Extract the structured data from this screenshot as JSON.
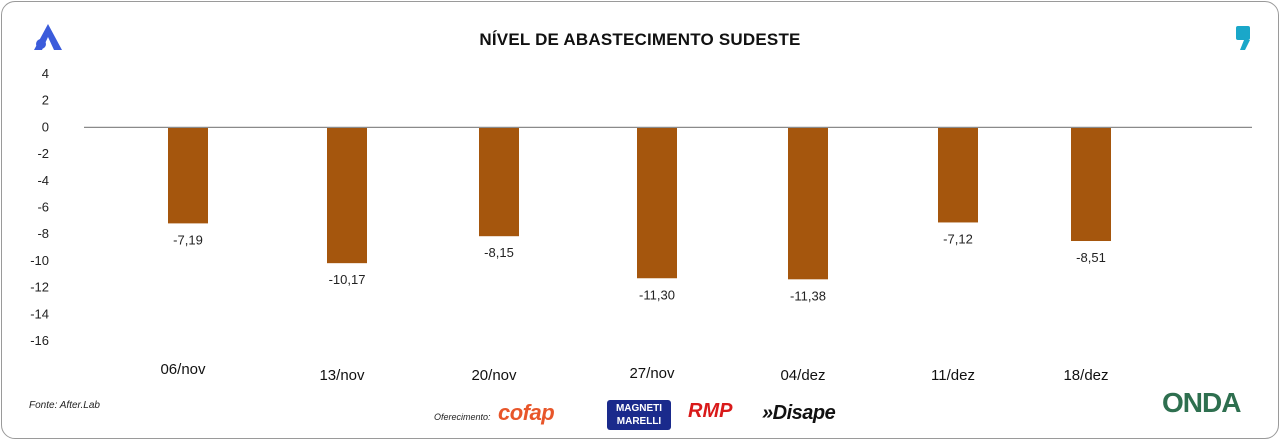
{
  "chart_data": {
    "type": "bar",
    "title": "NÍVEL DE ABASTECIMENTO SUDESTE",
    "categories": [
      "06/nov",
      "13/nov",
      "20/nov",
      "27/nov",
      "04/dez",
      "11/dez",
      "18/dez"
    ],
    "values": [
      -7.19,
      -10.17,
      -8.15,
      -11.3,
      -11.38,
      -7.12,
      -8.51
    ],
    "value_labels": [
      "-7,19",
      "-10,17",
      "-8,15",
      "-11,30",
      "-11,38",
      "-7,12",
      "-8,51"
    ],
    "yticks": [
      "4",
      "2",
      "0",
      "-2",
      "-4",
      "-6",
      "-8",
      "-10",
      "-12",
      "-14",
      "-16"
    ],
    "ytick_values": [
      4,
      2,
      0,
      -2,
      -4,
      -6,
      -8,
      -10,
      -12,
      -14,
      -16
    ],
    "ylim": [
      -16,
      4
    ],
    "grid": false,
    "bar_color": "#a5560d"
  },
  "footer": {
    "source": "Fonte: After.Lab",
    "sponsor_label": "Oferecimento:",
    "sponsors": [
      "cofap",
      "MAGNETI MARELLI",
      "RMP",
      "»Disape"
    ],
    "brand": "ONDA"
  },
  "icons": {
    "corner_logo": "stylized-a-logo-icon",
    "quote": "quote-mark-icon"
  },
  "colors": {
    "accent_blue": "#3b5bdb",
    "quote_teal": "#1aa7c9"
  }
}
